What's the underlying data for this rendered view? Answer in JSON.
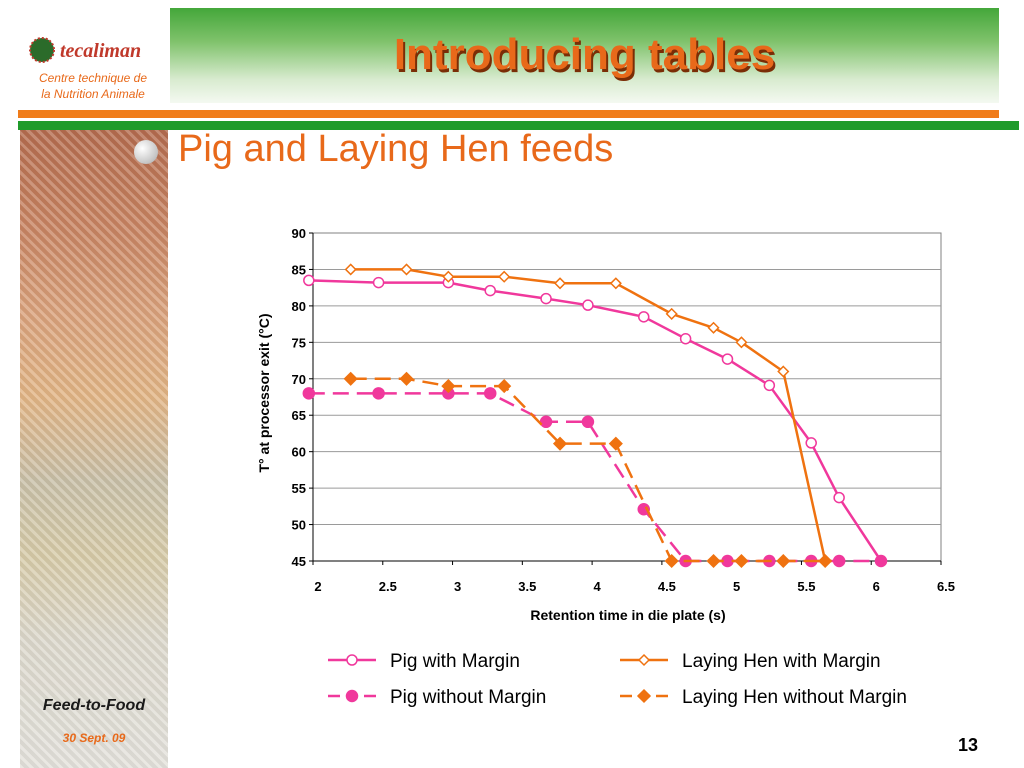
{
  "header": {
    "title": "Introducing tables",
    "logo_brand": "tecaliman",
    "logo_caption_line1": "Centre technique de",
    "logo_caption_line2": "la Nutrition Animale"
  },
  "subtitle": "Pig and Laying Hen feeds",
  "footer": {
    "brand": "Feed-to-Food",
    "date": "30 Sept. 09",
    "page_number": "13"
  },
  "colors": {
    "accent_orange": "#e8691a",
    "pig_pink": "#f0389c",
    "hen_orange": "#ef7210",
    "green": "#1f9b2b"
  },
  "chart_data": {
    "type": "line",
    "xlabel": "Retention time in die plate (s)",
    "ylabel": "T° at processor exit (°C)",
    "xlim": [
      2,
      6.5
    ],
    "ylim": [
      45,
      90
    ],
    "x_ticks": [
      "2",
      "2.5",
      "3",
      "3.5",
      "4",
      "4.5",
      "5",
      "5.5",
      "6",
      "6.5"
    ],
    "y_ticks": [
      "45",
      "50",
      "55",
      "60",
      "65",
      "70",
      "75",
      "80",
      "85",
      "90"
    ],
    "grid": "horizontal",
    "legend_position": "bottom",
    "series": [
      {
        "name": "Pig with Margin",
        "color": "#f0389c",
        "line": "solid",
        "marker": "circle-open",
        "points": [
          [
            1.97,
            83.5
          ],
          [
            2.47,
            83.2
          ],
          [
            2.97,
            83.2
          ],
          [
            3.27,
            82.1
          ],
          [
            3.67,
            81.0
          ],
          [
            3.97,
            80.1
          ],
          [
            4.37,
            78.5
          ],
          [
            4.67,
            75.5
          ],
          [
            4.97,
            72.7
          ],
          [
            5.27,
            69.1
          ],
          [
            5.57,
            61.2
          ],
          [
            5.77,
            53.7
          ],
          [
            6.07,
            45.0
          ]
        ]
      },
      {
        "name": "Laying Hen with Margin",
        "color": "#ef7210",
        "line": "solid",
        "marker": "diamond-open",
        "points": [
          [
            2.27,
            85.0
          ],
          [
            2.67,
            85.0
          ],
          [
            2.97,
            84.0
          ],
          [
            3.37,
            84.0
          ],
          [
            3.77,
            83.1
          ],
          [
            4.17,
            83.1
          ],
          [
            4.57,
            78.9
          ],
          [
            4.87,
            77.0
          ],
          [
            5.07,
            75.0
          ],
          [
            5.37,
            71.0
          ],
          [
            5.67,
            45.0
          ]
        ]
      },
      {
        "name": "Pig without Margin",
        "color": "#f0389c",
        "line": "dashed",
        "marker": "circle-filled",
        "points": [
          [
            1.97,
            68.0
          ],
          [
            2.47,
            68.0
          ],
          [
            2.97,
            68.0
          ],
          [
            3.27,
            68.0
          ],
          [
            3.67,
            64.1
          ],
          [
            3.97,
            64.1
          ],
          [
            4.37,
            52.1
          ],
          [
            4.67,
            45.0
          ],
          [
            4.97,
            45.0
          ],
          [
            5.27,
            45.0
          ],
          [
            5.57,
            45.0
          ],
          [
            5.77,
            45.0
          ],
          [
            6.07,
            45.0
          ]
        ]
      },
      {
        "name": "Laying Hen without Margin",
        "color": "#ef7210",
        "line": "dashed",
        "marker": "diamond-filled",
        "points": [
          [
            2.27,
            70.0
          ],
          [
            2.67,
            70.0
          ],
          [
            2.97,
            69.0
          ],
          [
            3.37,
            69.0
          ],
          [
            3.77,
            61.1
          ],
          [
            4.17,
            61.1
          ],
          [
            4.57,
            45.0
          ],
          [
            4.87,
            45.0
          ],
          [
            5.07,
            45.0
          ],
          [
            5.37,
            45.0
          ],
          [
            5.67,
            45.0
          ]
        ]
      }
    ]
  }
}
